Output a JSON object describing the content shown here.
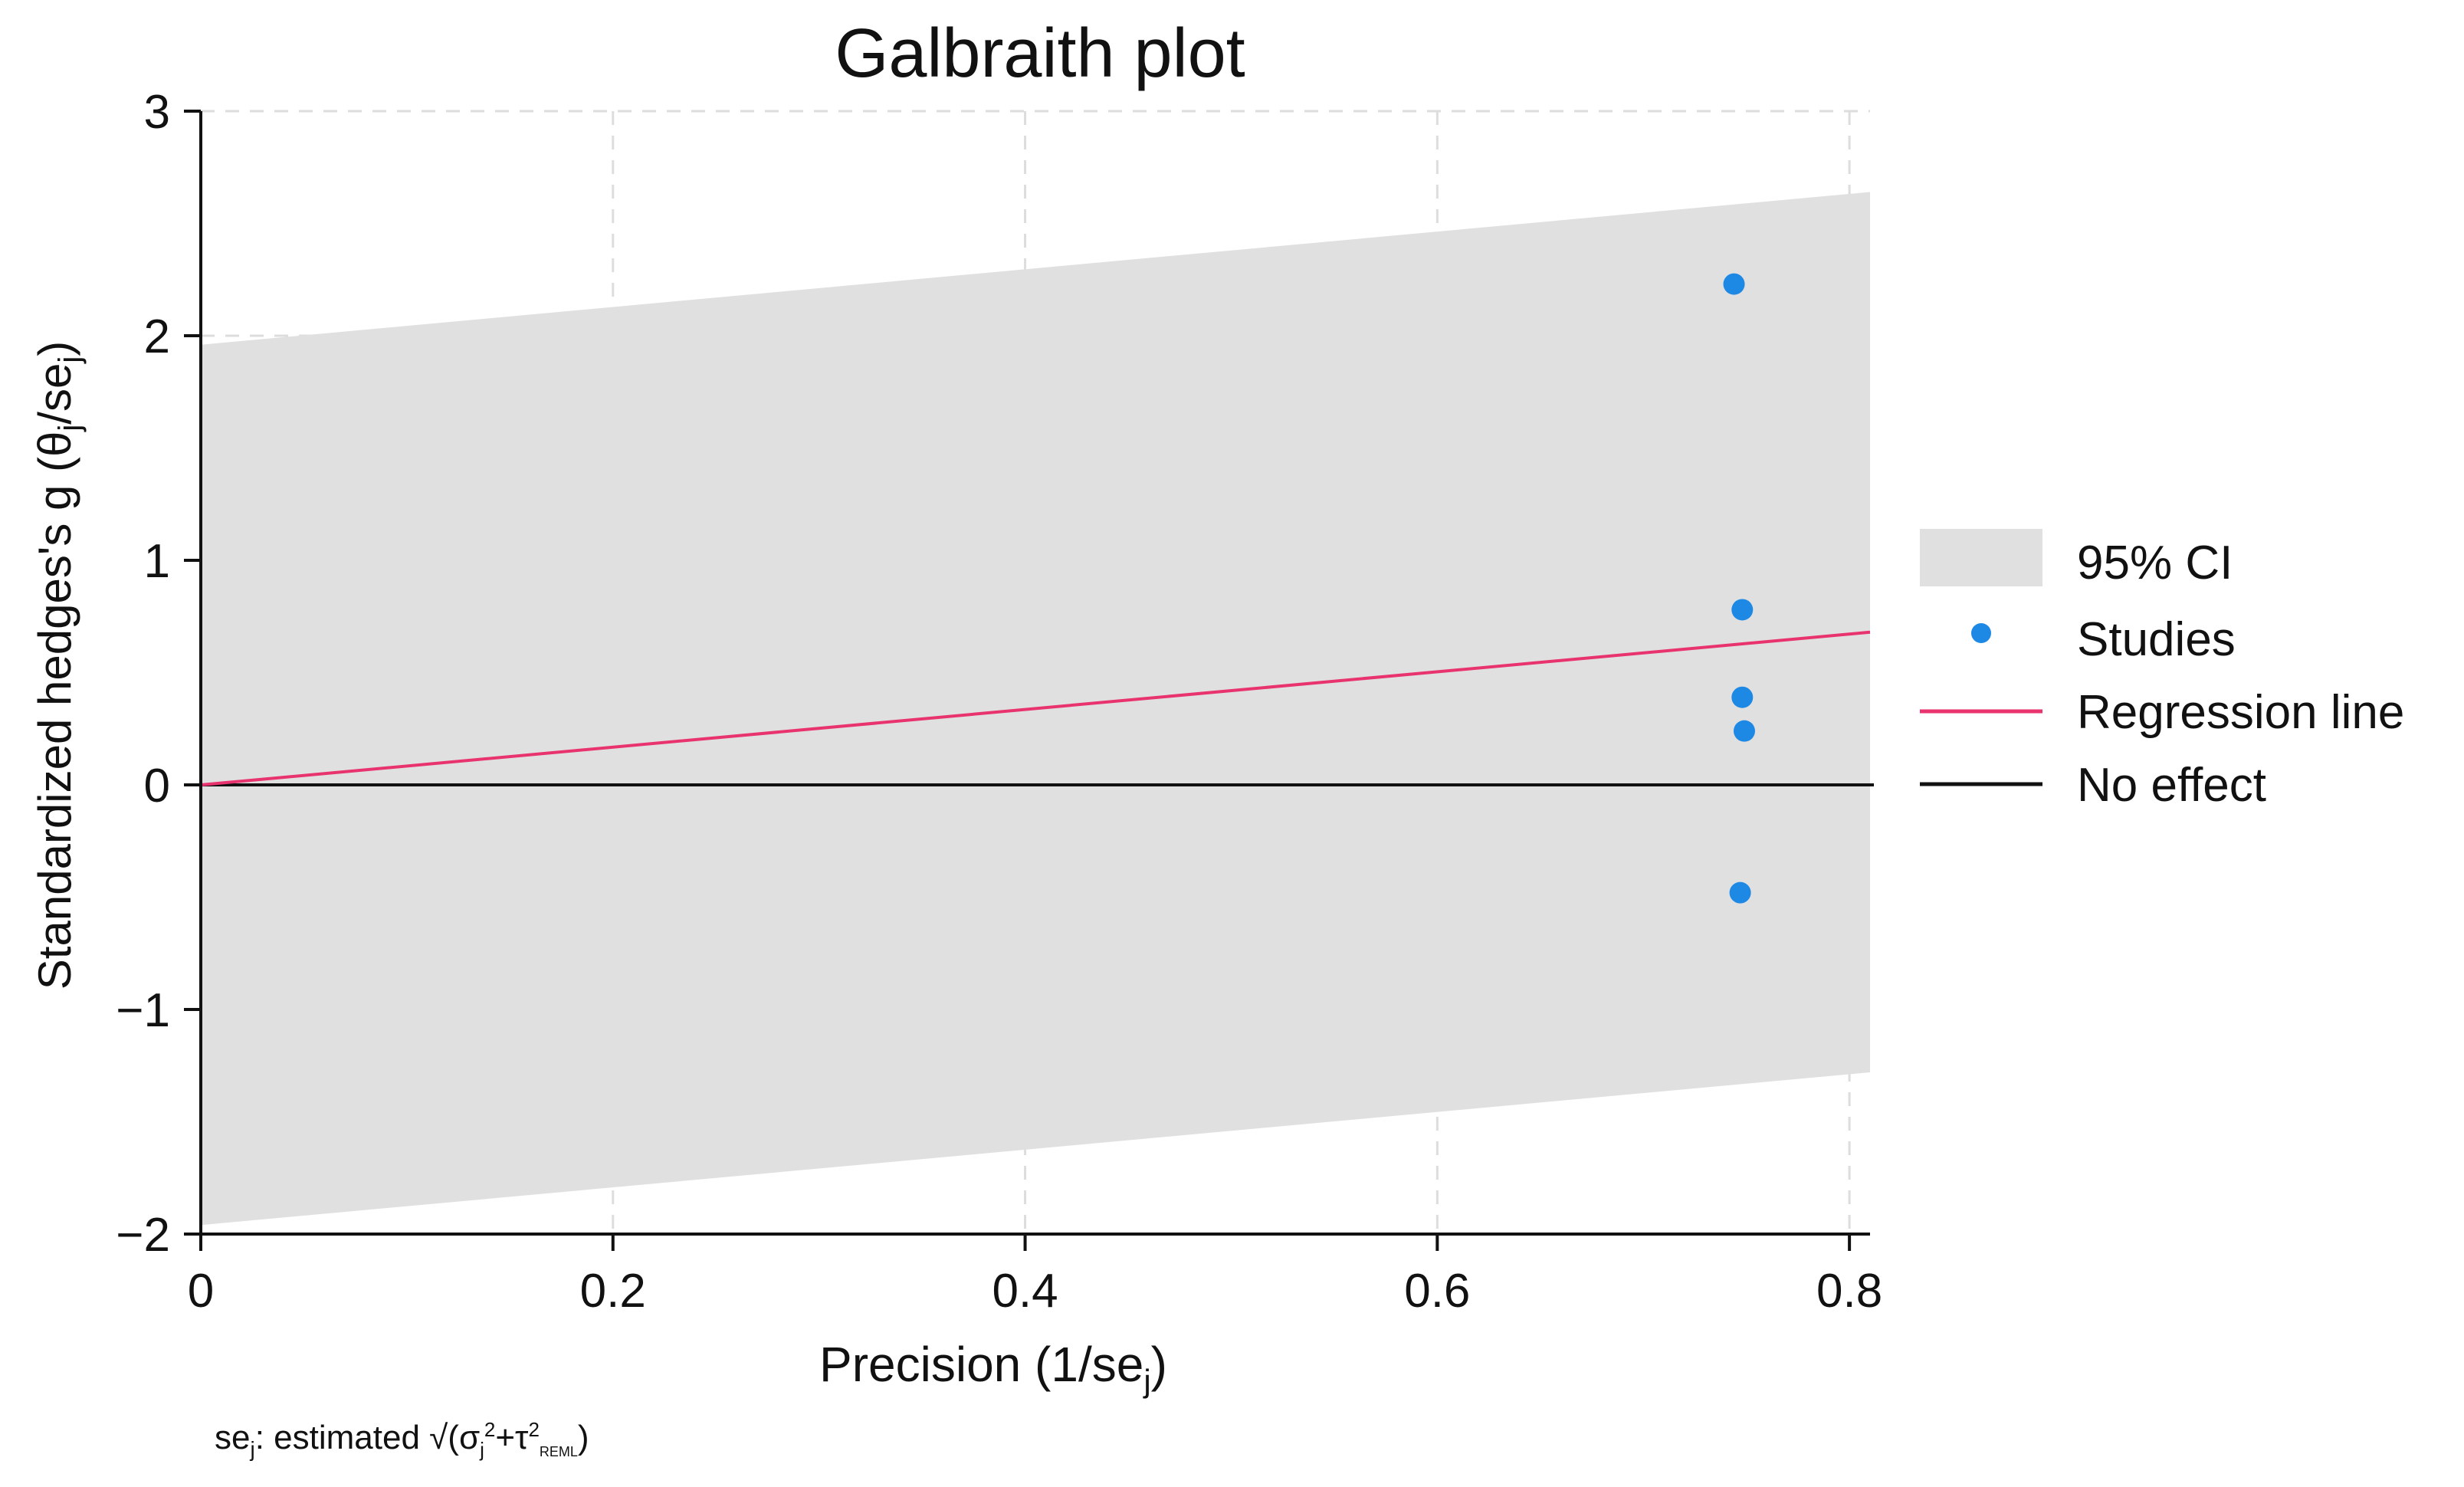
{
  "chart_data": {
    "type": "scatter",
    "title": "Galbraith plot",
    "xlabel": {
      "main": "Precision (1/se",
      "sub": "j",
      "close": ")"
    },
    "ylabel": {
      "part1": "Standardized hedges's g (θ",
      "sub1": "j",
      "part2": "/se",
      "sub2": "j",
      "close": ")"
    },
    "xlim": [
      0,
      0.81
    ],
    "ylim": [
      -2,
      3
    ],
    "xticks": [
      0,
      0.2,
      0.4,
      0.6,
      0.8
    ],
    "xtick_labels": [
      "0",
      "0.2",
      "0.4",
      "0.6",
      "0.8"
    ],
    "yticks": [
      -2,
      -1,
      0,
      1,
      2,
      3
    ],
    "ytick_labels": [
      "−2",
      "−1",
      "0",
      "1",
      "2",
      "3"
    ],
    "grid": true,
    "ci_band": {
      "name": "95% CI",
      "lower": [
        [
          0,
          -1.96
        ],
        [
          0.81,
          -1.28
        ]
      ],
      "upper": [
        [
          0,
          1.96
        ],
        [
          0.81,
          2.64
        ]
      ],
      "color": "#e0e0e0"
    },
    "studies": {
      "name": "Studies",
      "color": "#1e88e5",
      "points": [
        {
          "x": 0.744,
          "y": 2.23
        },
        {
          "x": 0.748,
          "y": 0.78
        },
        {
          "x": 0.748,
          "y": 0.39
        },
        {
          "x": 0.749,
          "y": 0.24
        },
        {
          "x": 0.747,
          "y": -0.48
        }
      ]
    },
    "regression_line": {
      "name": "Regression line",
      "color": "#e8336e",
      "points": [
        [
          0,
          0
        ],
        [
          0.81,
          0.68
        ]
      ]
    },
    "no_effect": {
      "name": "No effect",
      "color": "#111111",
      "y": 0
    },
    "legend": {
      "placement": "right",
      "entries": [
        "95% CI",
        "Studies",
        "Regression line",
        "No effect"
      ]
    },
    "footnote": {
      "se": "se",
      "se_sub": "j",
      "text1": ": estimated √(σ",
      "sigma_sub": "j",
      "sigma_sup": "2",
      "text2": "+τ",
      "tau_sup": "2",
      "tau_sub": "REML",
      "close": ")"
    }
  }
}
